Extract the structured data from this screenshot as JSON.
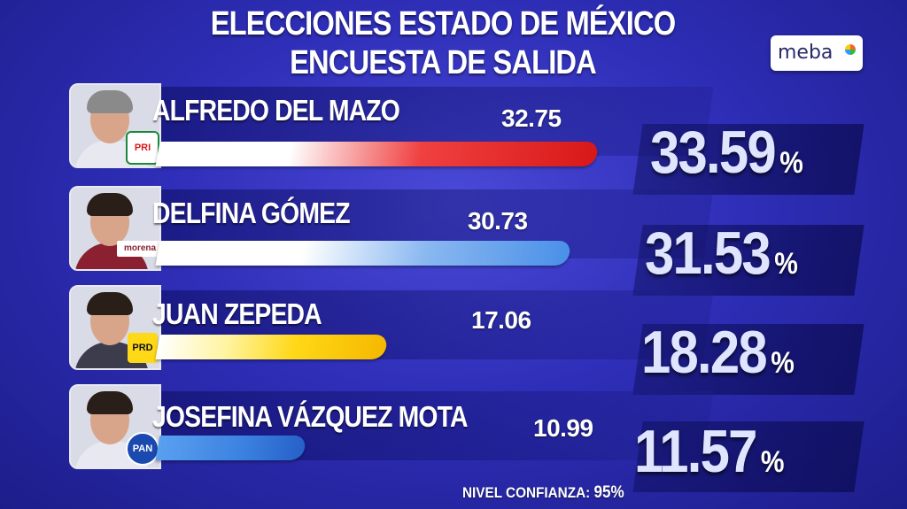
{
  "title_line1": "ELECCIONES ESTADO DE MÉXICO",
  "title_line2": "ENCUESTA DE SALIDA",
  "logo_text": "meba",
  "footer": {
    "label": "NIVEL CONFIANZA:",
    "value": "95%"
  },
  "badges": {
    "pri": "PRI",
    "morena": "morena",
    "prd": "PRD",
    "pan": "PAN"
  },
  "chart_data": {
    "type": "bar",
    "orientation": "horizontal",
    "title": "ELECCIONES ESTADO DE MÉXICO",
    "subtitle": "ENCUESTA DE SALIDA",
    "categories": [
      "ALFREDO DEL MAZO",
      "DELFINA GÓMEZ",
      "JUAN ZEPEDA",
      "JOSEFINA VÁZQUEZ MOTA"
    ],
    "series": [
      {
        "values": [
          32.75,
          30.73,
          17.06,
          10.99
        ]
      },
      {
        "values": [
          33.59,
          31.53,
          18.28,
          11.57
        ],
        "unit": "%"
      }
    ],
    "value_labels": [
      "32.75",
      "30.73",
      "17.06",
      "10.99"
    ],
    "percent_labels": [
      "33.59",
      "31.53",
      "18.28",
      "11.57"
    ],
    "percent_sign": "%",
    "xlim": [
      0,
      35
    ],
    "parties": [
      "PRI",
      "morena",
      "PRD",
      "PAN"
    ],
    "colors": [
      "#d81818",
      "#4a90e8",
      "#f5b800",
      "#2660c8"
    ]
  }
}
